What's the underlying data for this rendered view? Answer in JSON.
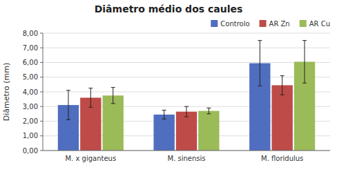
{
  "chart_data": {
    "type": "bar",
    "title": "Diâmetro médio dos caules",
    "y_label": "Diâmetro (mm)",
    "categories": [
      "M. x giganteus",
      "M. sinensis",
      "M. floridulus"
    ],
    "series": [
      {
        "name": "Controlo",
        "color": "#4F6EBF",
        "values": [
          3.1,
          2.45,
          5.95
        ],
        "errors": [
          1.0,
          0.3,
          1.55
        ]
      },
      {
        "name": "AR Zn",
        "color": "#BE4B48",
        "values": [
          3.6,
          2.65,
          4.45
        ],
        "errors": [
          0.65,
          0.35,
          0.65
        ]
      },
      {
        "name": "AR Cu",
        "color": "#9BBB59",
        "values": [
          3.75,
          2.7,
          6.05
        ],
        "errors": [
          0.55,
          0.2,
          1.45
        ]
      }
    ],
    "ylim": [
      0,
      8.0
    ],
    "yticks": [
      {
        "value": 0.0,
        "label": "0,00"
      },
      {
        "value": 1.0,
        "label": "1,00"
      },
      {
        "value": 2.0,
        "label": "2,00"
      },
      {
        "value": 3.0,
        "label": "3,00"
      },
      {
        "value": 4.0,
        "label": "4,00"
      },
      {
        "value": 5.0,
        "label": "5,00"
      },
      {
        "value": 6.0,
        "label": "6,00"
      },
      {
        "value": 7.0,
        "label": "7,00"
      },
      {
        "value": 8.0,
        "label": "8,00"
      }
    ],
    "grid": true,
    "legend": "upper right"
  }
}
